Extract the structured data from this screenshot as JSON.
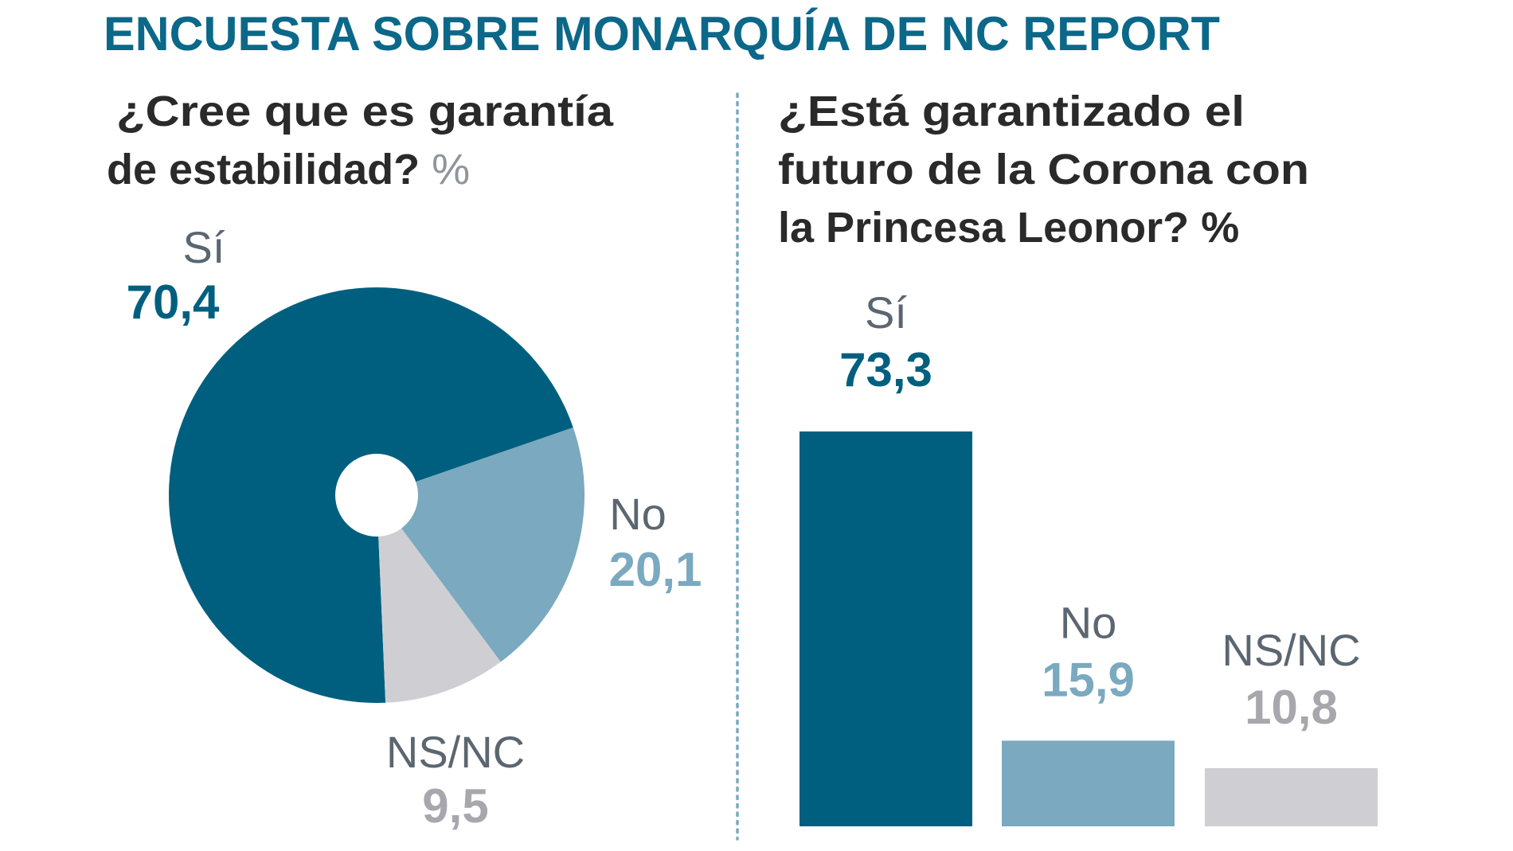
{
  "title": "ENCUESTA SOBRE MONARQUÍA DE NC REPORT",
  "colors": {
    "si": "#005f7f",
    "no": "#7aa9c0",
    "nsnc": "#cfcfd3",
    "nsnc_text": "#a7a7ad",
    "title": "#0b6888"
  },
  "chart_data": [
    {
      "type": "pie",
      "title_lines": [
        "¿Cree que es garantía",
        "de estabilidad?"
      ],
      "unit": "%",
      "categories": [
        "Sí",
        "No",
        "NS/NC"
      ],
      "values": [
        70.4,
        20.1,
        9.5
      ],
      "value_labels": [
        "70,4",
        "20,1",
        "9,5"
      ]
    },
    {
      "type": "bar",
      "title_lines": [
        "¿Está garantizado el",
        "futuro de la Corona con",
        "la Princesa Leonor?"
      ],
      "unit": "%",
      "categories": [
        "Sí",
        "No",
        "NS/NC"
      ],
      "values": [
        73.3,
        15.9,
        10.8
      ],
      "value_labels": [
        "73,3",
        "15,9",
        "10,8"
      ]
    }
  ]
}
